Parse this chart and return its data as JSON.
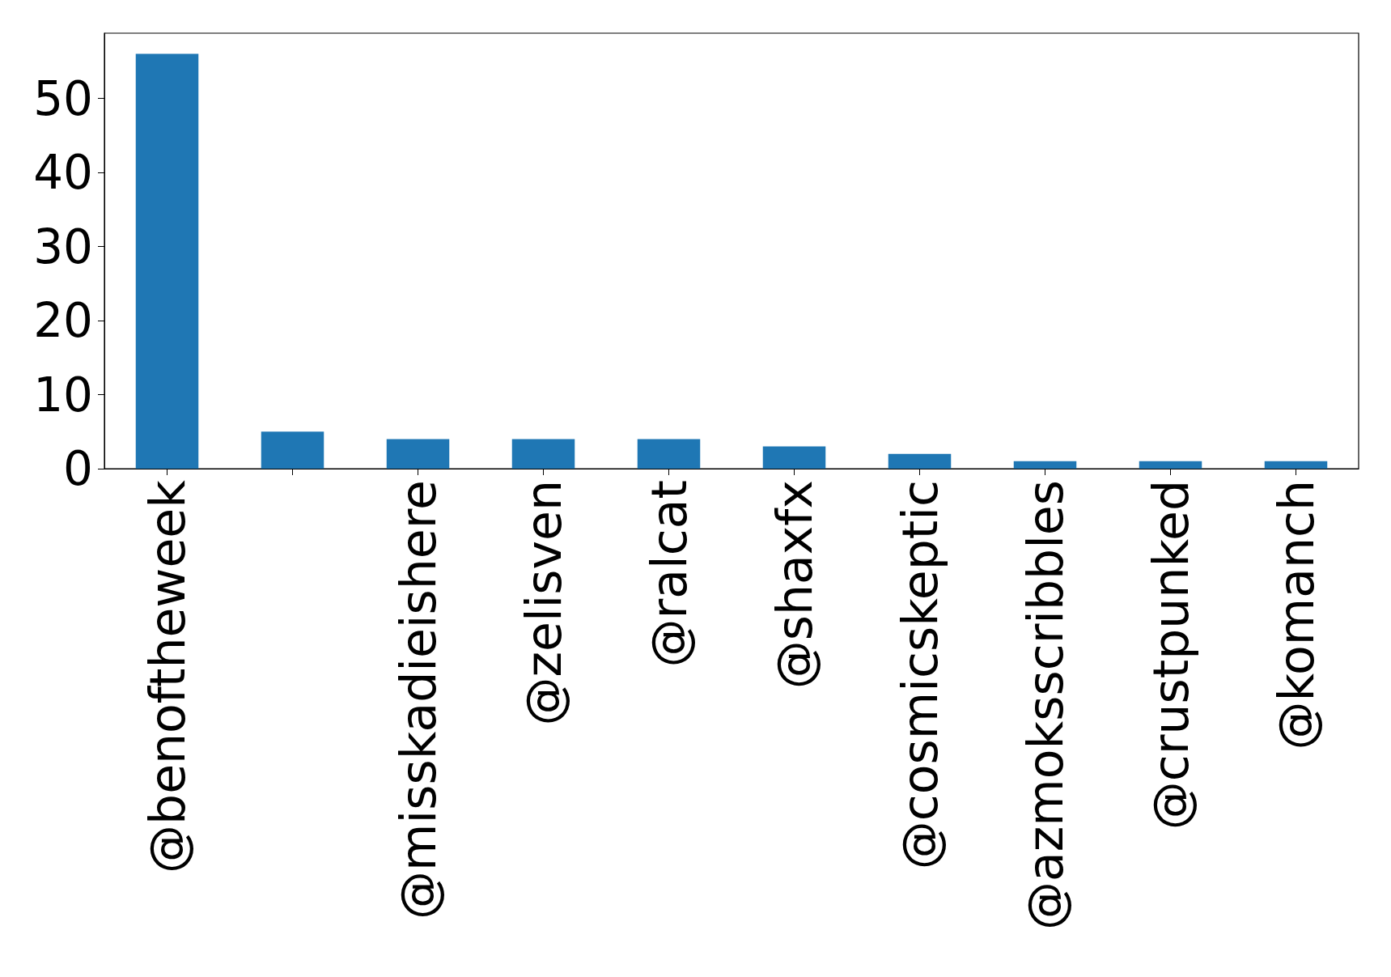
{
  "chart_data": {
    "type": "bar",
    "categories": [
      "@benoftheweek",
      null,
      "@misskadieishere",
      "@zelisven",
      "@ralcat",
      "@shaxfx",
      "@cosmicskeptic",
      "@azmoksscribbles",
      "@crustpunked",
      "@komanch"
    ],
    "values": [
      56,
      5,
      4,
      4,
      4,
      3,
      2,
      1,
      1,
      1
    ],
    "color": "#1f77b4",
    "ylim": [
      0,
      58.8
    ],
    "yticks": [
      0,
      10,
      20,
      30,
      40,
      50
    ],
    "grid": false
  }
}
